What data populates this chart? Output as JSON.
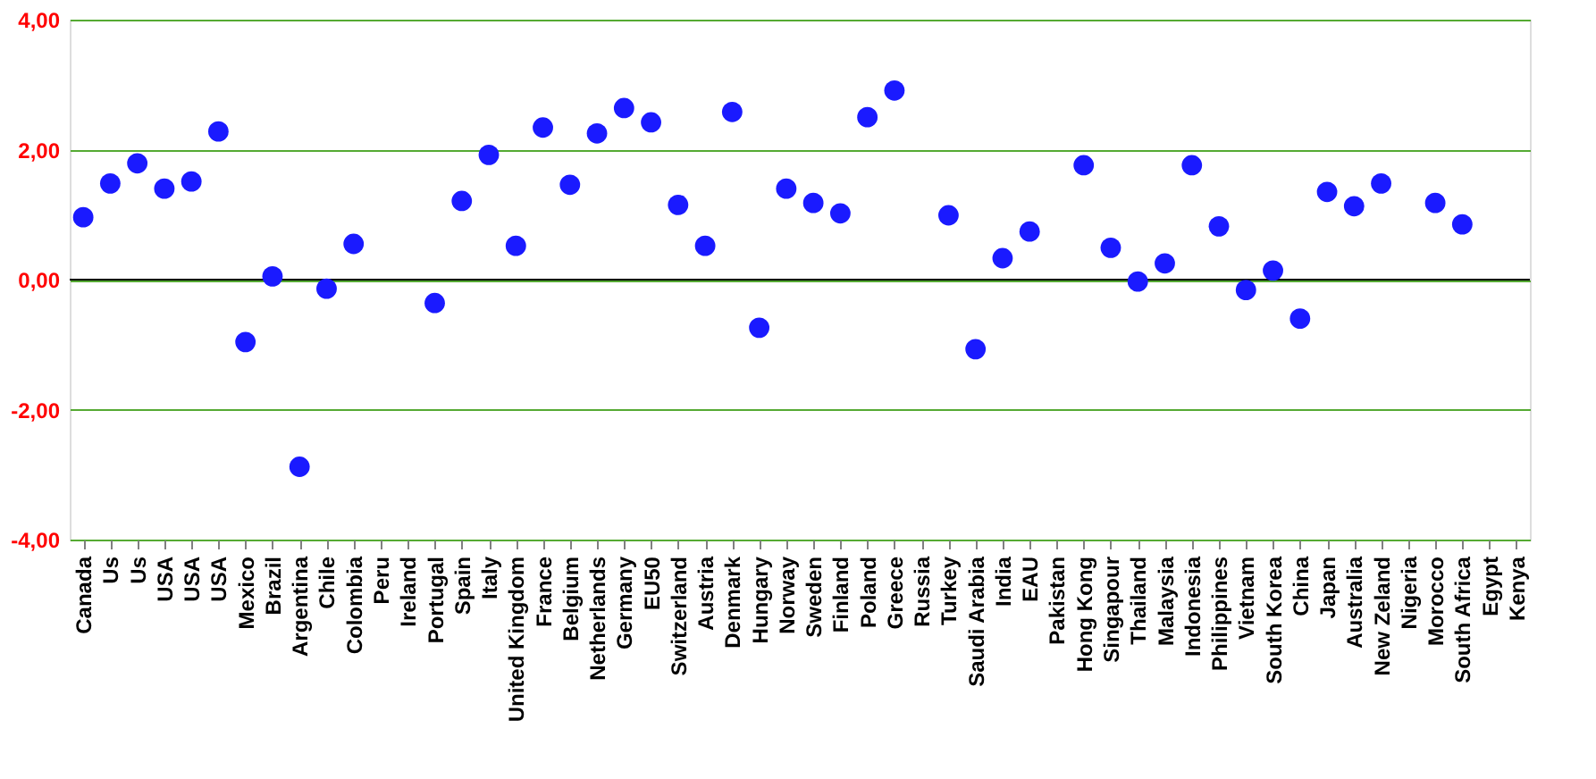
{
  "chart_data": {
    "type": "scatter",
    "categories": [
      "Canada",
      "Us",
      "Us",
      "USA",
      "USA",
      "USA",
      "Mexico",
      "Brazil",
      "Argentina",
      "Chile",
      "Colombia",
      "Peru",
      "Ireland",
      "Portugal",
      "Spain",
      "Italy",
      "United Kingdom",
      "France",
      "Belgium",
      "Netherlands",
      "Germany",
      "EU50",
      "Switzerland",
      "Austria",
      "Denmark",
      "Hungary",
      "Norway",
      "Sweden",
      "Finland",
      "Poland",
      "Greece",
      "Russia",
      "Turkey",
      "Saudi Arabia",
      "India",
      "EAU",
      "Pakistan",
      "Hong Kong",
      "Singapour",
      "Thailand",
      "Malaysia",
      "Indonesia",
      "Philippines",
      "Vietnam",
      "South Korea",
      "China",
      "Japan",
      "Australia",
      "New Zeland",
      "Nigeria",
      "Morocco",
      "South Africa",
      "Egypt",
      "Kenya"
    ],
    "series": [
      {
        "color": "#1a1aff",
        "values": [
          0.96,
          1.48,
          1.79,
          1.4,
          1.51,
          2.28,
          -0.96,
          0.05,
          -2.88,
          -0.14,
          0.55,
          null,
          null,
          -0.36,
          1.21,
          1.92,
          0.52,
          2.34,
          1.46,
          2.25,
          2.64,
          2.42,
          1.15,
          0.52,
          2.58,
          -0.74,
          1.4,
          1.18,
          1.02,
          2.5,
          2.91,
          null,
          0.99,
          -1.07,
          0.33,
          0.74,
          null,
          1.76,
          0.49,
          -0.03,
          0.25,
          1.76,
          0.82,
          -0.16,
          0.14,
          -0.6,
          1.35,
          1.13,
          1.48,
          null,
          1.18,
          0.85,
          null,
          null
        ]
      }
    ],
    "ylim": [
      -4,
      4
    ],
    "yticks": [
      {
        "value": -4,
        "label": "-4,00"
      },
      {
        "value": -2,
        "label": "-2,00"
      },
      {
        "value": 0,
        "label": "0,00"
      },
      {
        "value": 2,
        "label": "2,00"
      },
      {
        "value": 4,
        "label": "4,00"
      }
    ],
    "grid": "y",
    "marker": "circle",
    "ref_lines": [
      {
        "axis": "y",
        "value": 0,
        "color": "#000000"
      }
    ]
  }
}
